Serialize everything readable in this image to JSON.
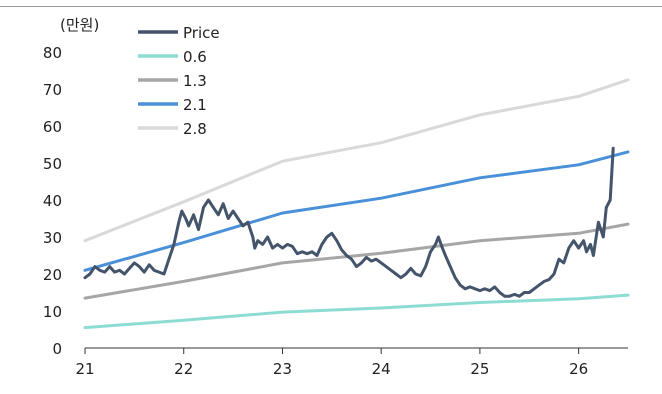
{
  "chart_data": {
    "type": "line",
    "unit_label": "(만원)",
    "title": "",
    "xlabel": "",
    "ylabel": "",
    "xlim": [
      21,
      26.5
    ],
    "ylim": [
      0,
      80
    ],
    "x_ticks": [
      21,
      22,
      23,
      24,
      25,
      26
    ],
    "y_ticks": [
      0,
      10,
      20,
      30,
      40,
      50,
      60,
      70,
      80
    ],
    "grid": false,
    "legend_position": "top-left",
    "series": [
      {
        "name": "Price",
        "color": "#44546a",
        "points": [
          [
            21.0,
            19.0
          ],
          [
            21.05,
            20.0
          ],
          [
            21.1,
            22.0
          ],
          [
            21.15,
            21.0
          ],
          [
            21.2,
            20.5
          ],
          [
            21.25,
            22.0
          ],
          [
            21.3,
            20.5
          ],
          [
            21.35,
            21.0
          ],
          [
            21.4,
            20.0
          ],
          [
            21.45,
            21.5
          ],
          [
            21.5,
            23.0
          ],
          [
            21.55,
            22.0
          ],
          [
            21.6,
            20.5
          ],
          [
            21.65,
            22.5
          ],
          [
            21.7,
            21.0
          ],
          [
            21.75,
            20.5
          ],
          [
            21.8,
            20.0
          ],
          [
            21.85,
            24.0
          ],
          [
            21.9,
            28.0
          ],
          [
            21.95,
            34.0
          ],
          [
            21.98,
            37.0
          ],
          [
            22.02,
            35.0
          ],
          [
            22.05,
            33.0
          ],
          [
            22.1,
            36.0
          ],
          [
            22.15,
            32.0
          ],
          [
            22.2,
            38.0
          ],
          [
            22.25,
            40.0
          ],
          [
            22.3,
            38.0
          ],
          [
            22.35,
            36.0
          ],
          [
            22.4,
            39.0
          ],
          [
            22.45,
            35.0
          ],
          [
            22.5,
            37.0
          ],
          [
            22.55,
            35.0
          ],
          [
            22.6,
            33.0
          ],
          [
            22.65,
            34.0
          ],
          [
            22.7,
            30.0
          ],
          [
            22.72,
            27.0
          ],
          [
            22.75,
            29.0
          ],
          [
            22.8,
            28.0
          ],
          [
            22.85,
            30.0
          ],
          [
            22.9,
            27.0
          ],
          [
            22.95,
            28.0
          ],
          [
            23.0,
            27.0
          ],
          [
            23.05,
            28.0
          ],
          [
            23.1,
            27.5
          ],
          [
            23.15,
            25.5
          ],
          [
            23.2,
            26.0
          ],
          [
            23.25,
            25.5
          ],
          [
            23.3,
            26.0
          ],
          [
            23.35,
            25.0
          ],
          [
            23.4,
            28.0
          ],
          [
            23.45,
            30.0
          ],
          [
            23.5,
            31.0
          ],
          [
            23.55,
            29.0
          ],
          [
            23.6,
            26.5
          ],
          [
            23.65,
            25.0
          ],
          [
            23.7,
            24.0
          ],
          [
            23.75,
            22.0
          ],
          [
            23.8,
            23.0
          ],
          [
            23.85,
            24.5
          ],
          [
            23.9,
            23.5
          ],
          [
            23.95,
            24.0
          ],
          [
            24.0,
            23.0
          ],
          [
            24.05,
            22.0
          ],
          [
            24.1,
            21.0
          ],
          [
            24.15,
            20.0
          ],
          [
            24.2,
            19.0
          ],
          [
            24.25,
            20.0
          ],
          [
            24.3,
            21.5
          ],
          [
            24.35,
            20.0
          ],
          [
            24.4,
            19.5
          ],
          [
            24.45,
            22.0
          ],
          [
            24.5,
            26.0
          ],
          [
            24.55,
            28.0
          ],
          [
            24.58,
            30.0
          ],
          [
            24.62,
            27.0
          ],
          [
            24.65,
            25.0
          ],
          [
            24.7,
            22.0
          ],
          [
            24.75,
            19.0
          ],
          [
            24.8,
            17.0
          ],
          [
            24.85,
            16.0
          ],
          [
            24.9,
            16.5
          ],
          [
            24.95,
            16.0
          ],
          [
            25.0,
            15.5
          ],
          [
            25.05,
            16.0
          ],
          [
            25.1,
            15.5
          ],
          [
            25.15,
            16.5
          ],
          [
            25.2,
            15.0
          ],
          [
            25.25,
            14.0
          ],
          [
            25.3,
            14.0
          ],
          [
            25.35,
            14.5
          ],
          [
            25.4,
            14.0
          ],
          [
            25.45,
            15.0
          ],
          [
            25.5,
            15.0
          ],
          [
            25.55,
            16.0
          ],
          [
            25.6,
            17.0
          ],
          [
            25.65,
            18.0
          ],
          [
            25.7,
            18.5
          ],
          [
            25.75,
            20.0
          ],
          [
            25.8,
            24.0
          ],
          [
            25.85,
            23.0
          ],
          [
            25.9,
            27.0
          ],
          [
            25.95,
            29.0
          ],
          [
            26.0,
            27.0
          ],
          [
            26.05,
            29.0
          ],
          [
            26.08,
            26.0
          ],
          [
            26.12,
            28.0
          ],
          [
            26.15,
            25.0
          ],
          [
            26.2,
            34.0
          ],
          [
            26.25,
            30.0
          ],
          [
            26.28,
            38.0
          ],
          [
            26.32,
            40.0
          ],
          [
            26.35,
            54.0
          ]
        ]
      },
      {
        "name": "0.6",
        "color": "#8ddcd4",
        "points": [
          [
            21,
            5.5
          ],
          [
            22,
            7.5
          ],
          [
            23,
            9.7
          ],
          [
            24,
            10.8
          ],
          [
            25,
            12.3
          ],
          [
            26,
            13.3
          ],
          [
            26.5,
            14.3
          ]
        ]
      },
      {
        "name": "1.3",
        "color": "#a6a6a6",
        "points": [
          [
            21,
            13.5
          ],
          [
            22,
            18.0
          ],
          [
            23,
            23.0
          ],
          [
            24,
            25.6
          ],
          [
            25,
            29.0
          ],
          [
            26,
            31.0
          ],
          [
            26.5,
            33.5
          ]
        ]
      },
      {
        "name": "2.1",
        "color": "#4a90d9",
        "points": [
          [
            21,
            21.0
          ],
          [
            22,
            28.5
          ],
          [
            23,
            36.5
          ],
          [
            24,
            40.5
          ],
          [
            25,
            46.0
          ],
          [
            26,
            49.5
          ],
          [
            26.5,
            53.0
          ]
        ]
      },
      {
        "name": "2.8",
        "color": "#d9d9d9",
        "points": [
          [
            21,
            29.0
          ],
          [
            22,
            39.5
          ],
          [
            23,
            50.5
          ],
          [
            24,
            55.5
          ],
          [
            25,
            63.0
          ],
          [
            26,
            68.0
          ],
          [
            26.5,
            72.5
          ]
        ]
      }
    ]
  }
}
